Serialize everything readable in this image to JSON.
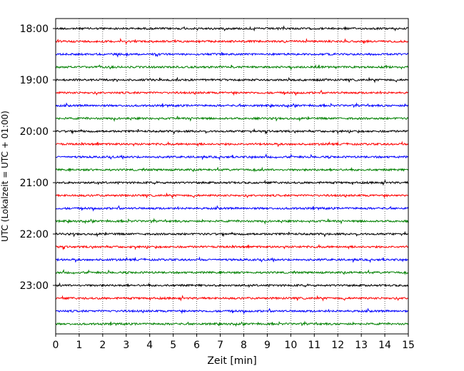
{
  "chart_data": {
    "type": "line",
    "title": "",
    "xlabel": "Zeit  [min]",
    "ylabel": "UTC (Lokalzeit = UTC + 01:00)",
    "xlim": [
      0,
      15
    ],
    "x_ticks": [
      "0",
      "1",
      "2",
      "3",
      "4",
      "5",
      "6",
      "7",
      "8",
      "9",
      "10",
      "11",
      "12",
      "13",
      "14",
      "15"
    ],
    "y_ticks": [
      "18:00",
      "19:00",
      "20:00",
      "21:00",
      "22:00",
      "23:00"
    ],
    "grid": "vertical-dotted",
    "trace_count": 24,
    "trace_colors": [
      "#000000",
      "#ff0000",
      "#0000ff",
      "#008000"
    ]
  }
}
